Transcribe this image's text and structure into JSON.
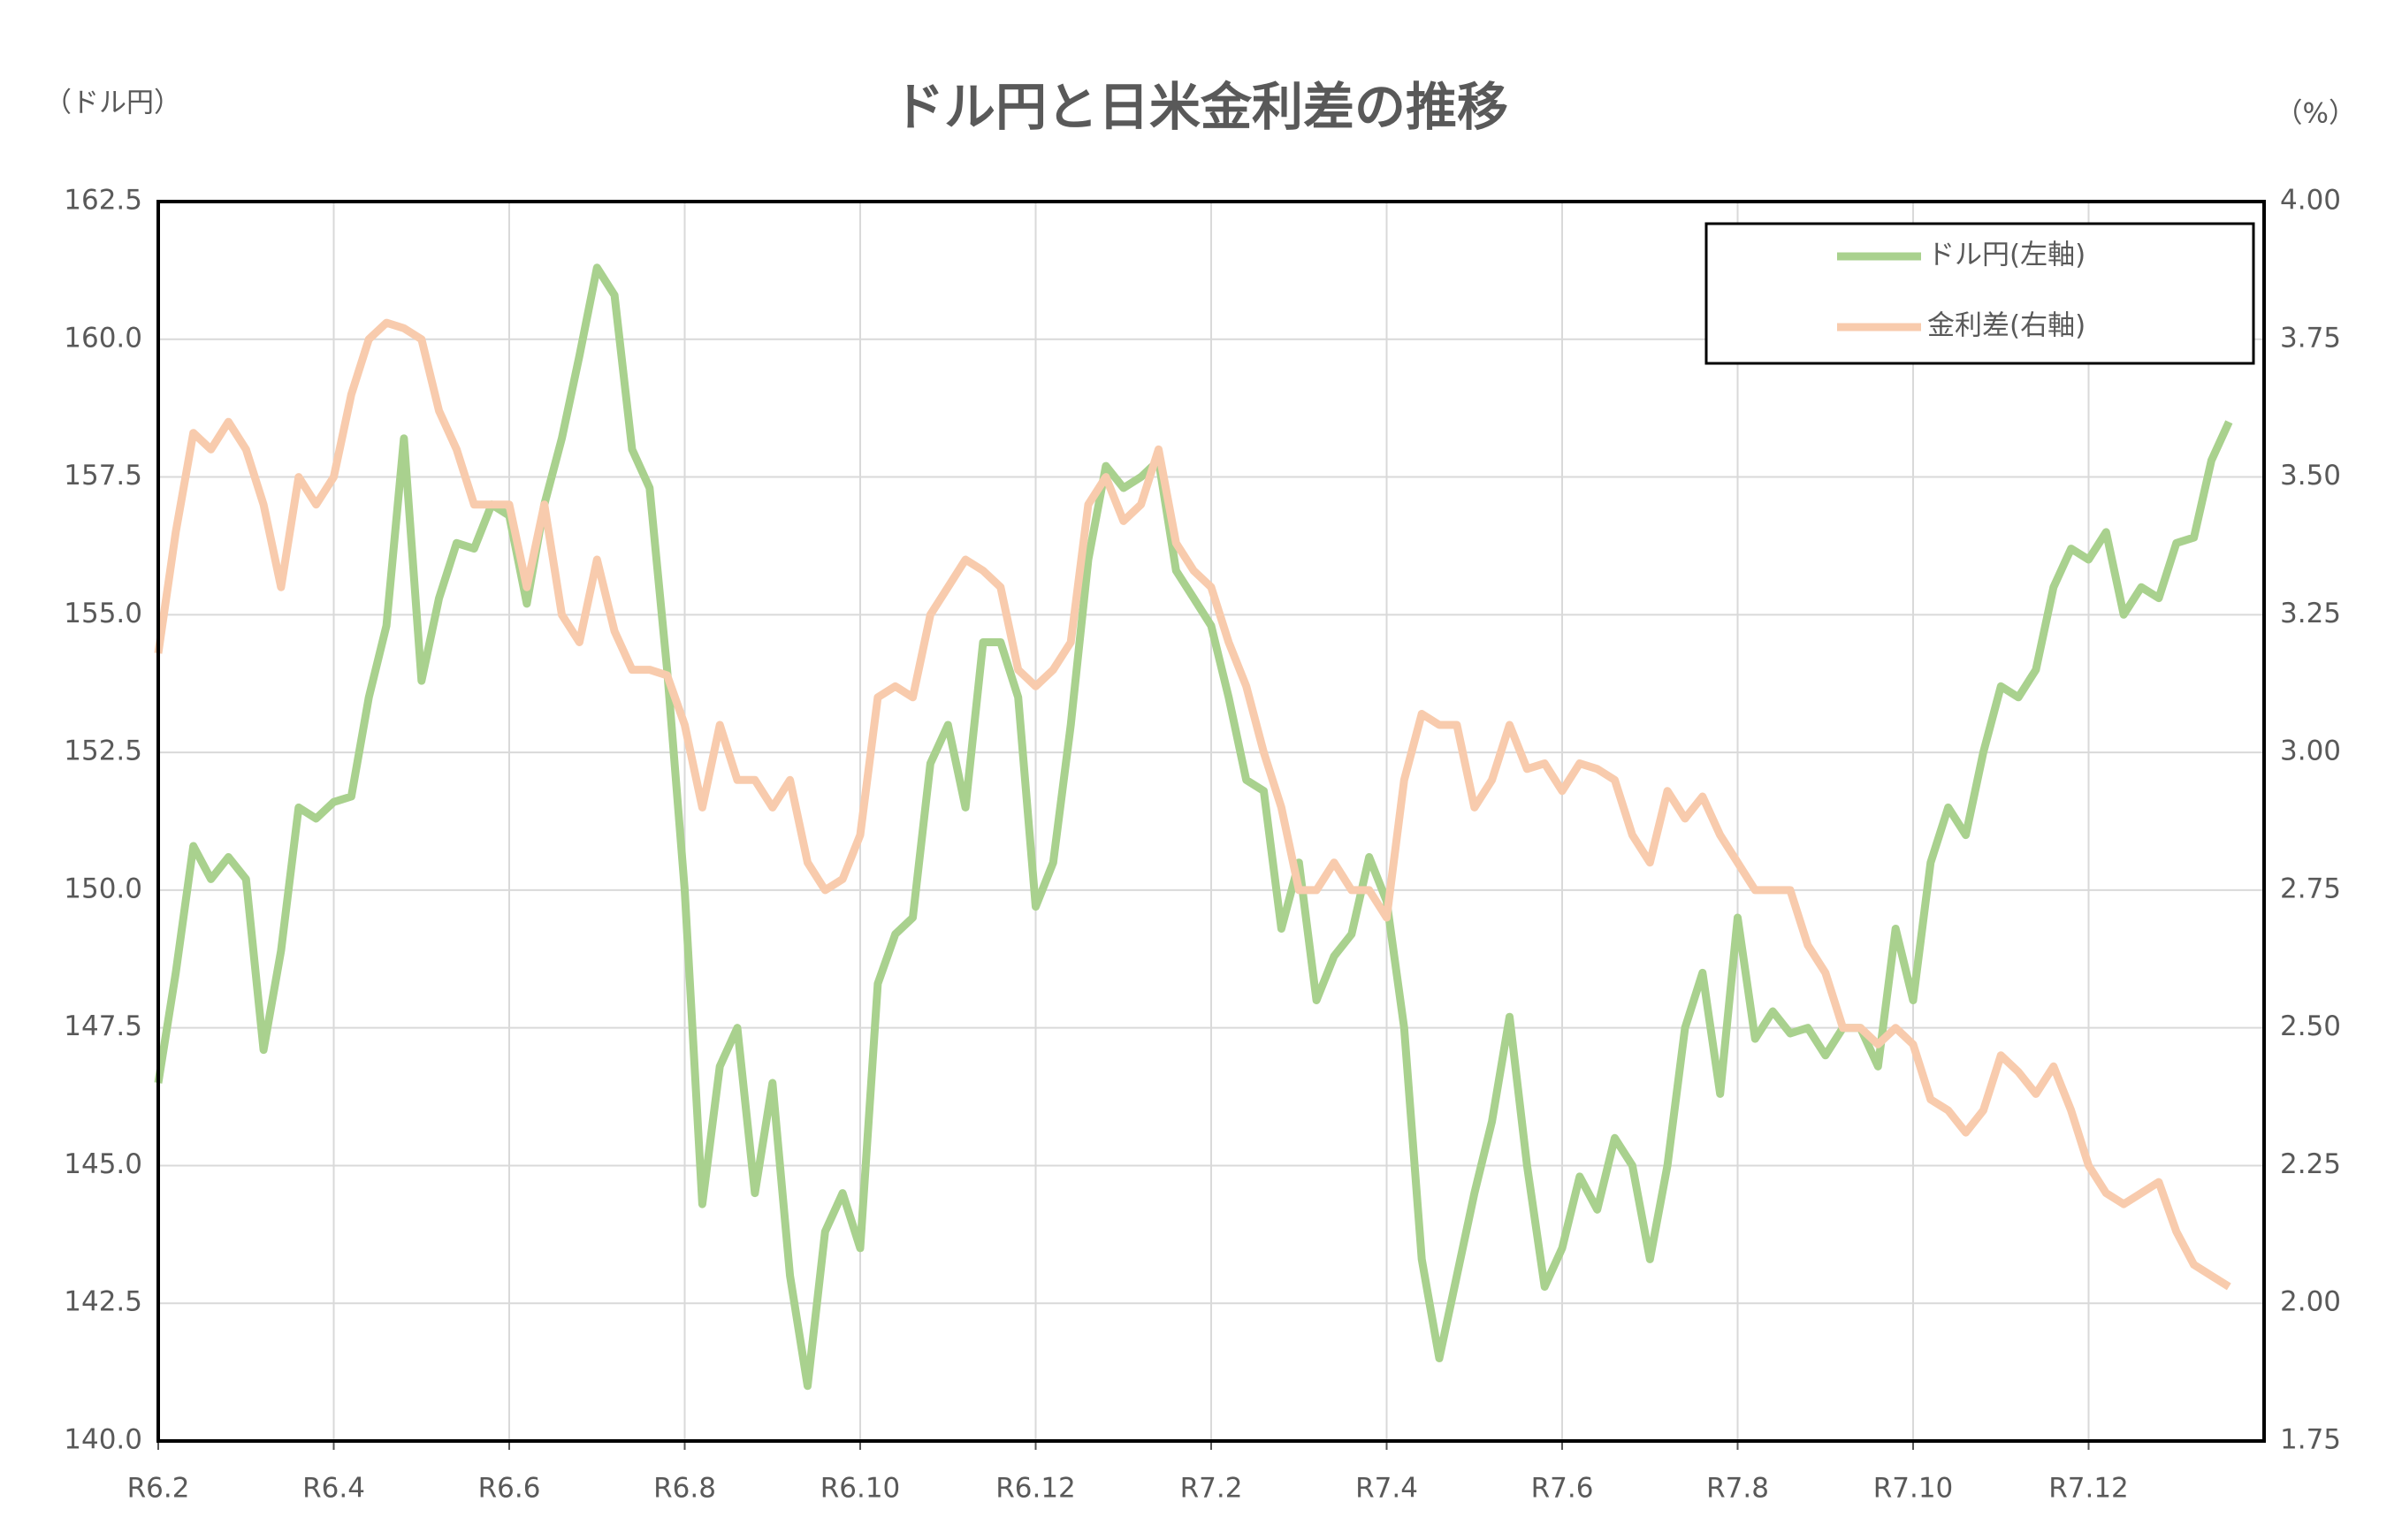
{
  "chart_data": {
    "type": "line",
    "title": "ドル円と日米金利差の推移",
    "y_label": "（ドル円）",
    "y2_label": "（%）",
    "categories": [
      "R6.2",
      null,
      null,
      null,
      null,
      null,
      null,
      null,
      null,
      null,
      "R6.4",
      null,
      null,
      null,
      null,
      null,
      null,
      null,
      null,
      null,
      "R6.6",
      null,
      null,
      null,
      null,
      null,
      null,
      null,
      null,
      null,
      "R6.8",
      null,
      null,
      null,
      null,
      null,
      null,
      null,
      null,
      null,
      "R6.10",
      null,
      null,
      null,
      null,
      null,
      null,
      null,
      null,
      null,
      "R6.12",
      null,
      null,
      null,
      null,
      null,
      null,
      null,
      null,
      null,
      "R7.2",
      null,
      null,
      null,
      null,
      null,
      null,
      null,
      null,
      null,
      "R7.4",
      null,
      null,
      null,
      null,
      null,
      null,
      null,
      null,
      null,
      "R7.6",
      null,
      null,
      null,
      null,
      null,
      null,
      null,
      null,
      null,
      "R7.8",
      null,
      null,
      null,
      null,
      null,
      null,
      null,
      null,
      null,
      "R7.10",
      null,
      null,
      null,
      null,
      null,
      null,
      null,
      null,
      null,
      "R7.12",
      null,
      null,
      null,
      null,
      null,
      null,
      null,
      null,
      null,
      null
    ],
    "series": [
      {
        "name": "ドル円(左軸)",
        "color": "#a9d18e",
        "axis": "y",
        "values": [
          146.5,
          148.5,
          150.8,
          150.2,
          150.6,
          150.2,
          147.1,
          148.9,
          151.5,
          151.3,
          151.6,
          151.7,
          153.5,
          154.8,
          158.2,
          153.8,
          155.3,
          156.3,
          156.2,
          157.0,
          156.8,
          155.2,
          157.0,
          158.2,
          159.7,
          161.3,
          160.8,
          158.0,
          157.3,
          154.0,
          150.0,
          144.3,
          146.8,
          147.5,
          144.5,
          146.5,
          143.0,
          141.0,
          143.8,
          144.5,
          143.5,
          148.3,
          149.2,
          149.5,
          152.3,
          153.0,
          151.5,
          154.5,
          154.5,
          153.5,
          149.7,
          150.5,
          153.0,
          156.0,
          157.7,
          157.3,
          157.5,
          157.8,
          155.8,
          155.3,
          154.8,
          153.5,
          152.0,
          151.8,
          149.3,
          150.5,
          148.0,
          148.8,
          149.2,
          150.6,
          149.8,
          147.5,
          143.3,
          141.5,
          143.0,
          144.5,
          145.8,
          147.7,
          145.0,
          142.8,
          143.5,
          144.8,
          144.2,
          145.5,
          145.0,
          143.3,
          145.0,
          147.5,
          148.5,
          146.3,
          149.5,
          147.3,
          147.8,
          147.4,
          147.5,
          147.0,
          147.5,
          147.5,
          146.8,
          149.3,
          148.0,
          150.5,
          151.5,
          151.0,
          152.5,
          153.7,
          153.5,
          154.0,
          155.5,
          156.2,
          156.0,
          156.5,
          155.0,
          155.5,
          155.3,
          156.3,
          156.4,
          157.8,
          158.5,
          null,
          null
        ]
      },
      {
        "name": "金利差(右軸)",
        "color": "#f8cbad",
        "axis": "y2",
        "values": [
          3.18,
          3.4,
          3.58,
          3.55,
          3.6,
          3.55,
          3.45,
          3.3,
          3.5,
          3.45,
          3.5,
          3.65,
          3.75,
          3.78,
          3.77,
          3.75,
          3.62,
          3.55,
          3.45,
          3.45,
          3.45,
          3.3,
          3.45,
          3.25,
          3.2,
          3.35,
          3.22,
          3.15,
          3.15,
          3.14,
          3.05,
          2.9,
          3.05,
          2.95,
          2.95,
          2.9,
          2.95,
          2.8,
          2.75,
          2.77,
          2.85,
          3.1,
          3.12,
          3.1,
          3.25,
          3.3,
          3.35,
          3.33,
          3.3,
          3.15,
          3.12,
          3.15,
          3.2,
          3.45,
          3.5,
          3.42,
          3.45,
          3.55,
          3.38,
          3.33,
          3.3,
          3.2,
          3.12,
          3.0,
          2.9,
          2.75,
          2.75,
          2.8,
          2.75,
          2.75,
          2.7,
          2.95,
          3.07,
          3.05,
          3.05,
          2.9,
          2.95,
          3.05,
          2.97,
          2.98,
          2.93,
          2.98,
          2.97,
          2.95,
          2.85,
          2.8,
          2.93,
          2.88,
          2.92,
          2.85,
          2.8,
          2.75,
          2.75,
          2.75,
          2.65,
          2.6,
          2.5,
          2.5,
          2.47,
          2.5,
          2.47,
          2.37,
          2.35,
          2.31,
          2.35,
          2.45,
          2.42,
          2.38,
          2.43,
          2.35,
          2.25,
          2.2,
          2.18,
          2.2,
          2.22,
          2.13,
          2.07,
          2.05,
          2.03,
          null,
          null
        ]
      }
    ],
    "ylim": [
      140,
      162.5
    ],
    "yticks": [
      {
        "value": 140,
        "label": "140.0"
      },
      {
        "value": 142.5,
        "label": "142.5"
      },
      {
        "value": 145,
        "label": "145.0"
      },
      {
        "value": 147.5,
        "label": "147.5"
      },
      {
        "value": 150,
        "label": "150.0"
      },
      {
        "value": 152.5,
        "label": "152.5"
      },
      {
        "value": 155,
        "label": "155.0"
      },
      {
        "value": 157.5,
        "label": "157.5"
      },
      {
        "value": 160,
        "label": "160.0"
      },
      {
        "value": 162.5,
        "label": "162.5"
      }
    ],
    "y2lim": [
      1.75,
      4
    ],
    "y2ticks": [
      {
        "value": 1.75,
        "label": "1.75"
      },
      {
        "value": 2,
        "label": "2.00"
      },
      {
        "value": 2.25,
        "label": "2.25"
      },
      {
        "value": 2.5,
        "label": "2.50"
      },
      {
        "value": 2.75,
        "label": "2.75"
      },
      {
        "value": 3,
        "label": "3.00"
      },
      {
        "value": 3.25,
        "label": "3.25"
      },
      {
        "value": 3.5,
        "label": "3.50"
      },
      {
        "value": 3.75,
        "label": "3.75"
      },
      {
        "value": 4,
        "label": "4.00"
      }
    ],
    "grid": true,
    "legend": "upper right"
  }
}
